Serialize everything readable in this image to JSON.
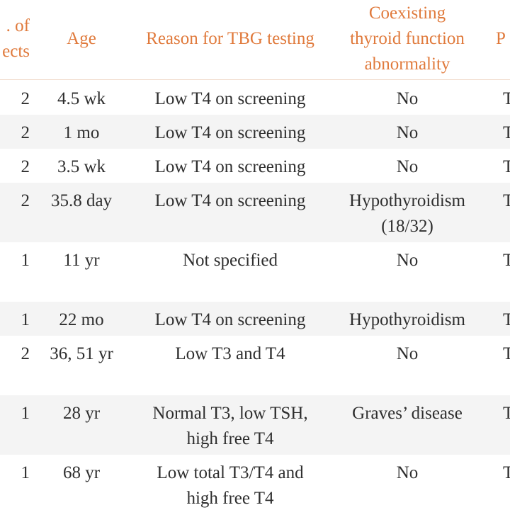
{
  "table": {
    "headers": {
      "subjects": "No. of subjects",
      "subjects_visible_line1": ". of",
      "subjects_visible_line2": "ects",
      "age": "Age",
      "reason": "Reason for TBG testing",
      "coexisting_line1": "Coexisting",
      "coexisting_line2": "thyroid function",
      "coexisting_line3": "abnormality",
      "next_partial": "P"
    },
    "rows": [
      {
        "subjects": "2",
        "age": "4.5 wk",
        "reason": [
          "Low T4 on screening"
        ],
        "coexisting": [
          "No"
        ],
        "next": "T"
      },
      {
        "subjects": "2",
        "age": "1 mo",
        "reason": [
          "Low T4 on screening"
        ],
        "coexisting": [
          "No"
        ],
        "next": "T"
      },
      {
        "subjects": "2",
        "age": "3.5 wk",
        "reason": [
          "Low T4 on screening"
        ],
        "coexisting": [
          "No"
        ],
        "next": "T"
      },
      {
        "subjects": "2",
        "age": "35.8 day",
        "reason": [
          "Low T4 on screening"
        ],
        "coexisting": [
          "Hypothyroidism",
          "(18/32)"
        ],
        "next": "T"
      },
      {
        "subjects": "1",
        "age": "11 yr",
        "reason": [
          "Not specified"
        ],
        "coexisting": [
          "No"
        ],
        "next": "T"
      },
      {
        "subjects": "1",
        "age": "22 mo",
        "reason": [
          "Low T4 on screening"
        ],
        "coexisting": [
          "Hypothyroidism"
        ],
        "next": "T"
      },
      {
        "subjects": "2",
        "age": "36, 51 yr",
        "reason": [
          "Low T3 and T4"
        ],
        "coexisting": [
          "No"
        ],
        "next": "T"
      },
      {
        "subjects": "1",
        "age": "28 yr",
        "reason": [
          "Normal T3, low TSH,",
          "high free T4"
        ],
        "coexisting": [
          "Graves’ disease"
        ],
        "next": "T"
      },
      {
        "subjects": "1",
        "age": "68 yr",
        "reason": [
          "Low total T3/T4 and",
          "high free T4"
        ],
        "coexisting": [
          "No"
        ],
        "next": "T"
      }
    ]
  },
  "colors": {
    "header_text": "#e07a3c",
    "body_text": "#2e2e2e",
    "band_alt": "#f4f4f4"
  }
}
